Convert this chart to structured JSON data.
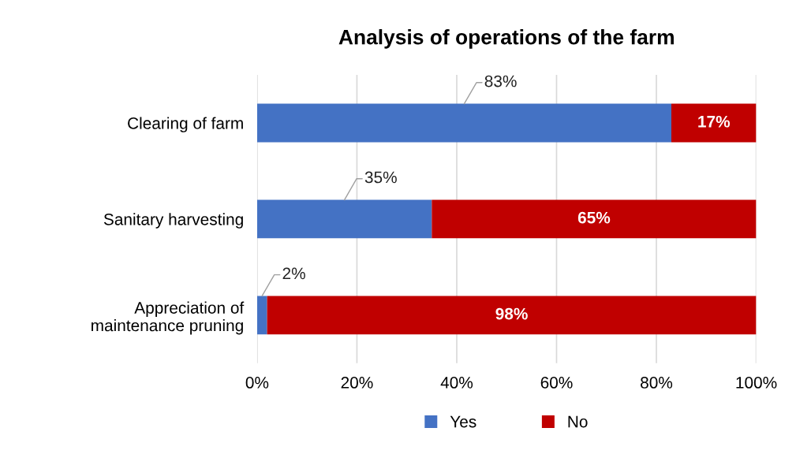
{
  "chart_data": {
    "type": "bar",
    "orientation": "horizontal",
    "stacked": true,
    "title": "Analysis of operations of the farm",
    "categories": [
      "Clearing of farm",
      "Sanitary harvesting",
      "Appreciation of\nmaintenance pruning"
    ],
    "series": [
      {
        "name": "Yes",
        "color": "#4472c4",
        "values": [
          83,
          35,
          2
        ],
        "value_labels": [
          "83%",
          "35%",
          "2%"
        ]
      },
      {
        "name": "No",
        "color": "#c00000",
        "values": [
          17,
          65,
          98
        ],
        "value_labels": [
          "17%",
          "65%",
          "98%"
        ]
      }
    ],
    "xlim": [
      0,
      100
    ],
    "xticks": [
      {
        "value": 0,
        "label": "0%"
      },
      {
        "value": 20,
        "label": "20%"
      },
      {
        "value": 40,
        "label": "40%"
      },
      {
        "value": 60,
        "label": "60%"
      },
      {
        "value": 80,
        "label": "80%"
      },
      {
        "value": 100,
        "label": "100%"
      }
    ],
    "grid": "x",
    "legend": "bottom"
  }
}
